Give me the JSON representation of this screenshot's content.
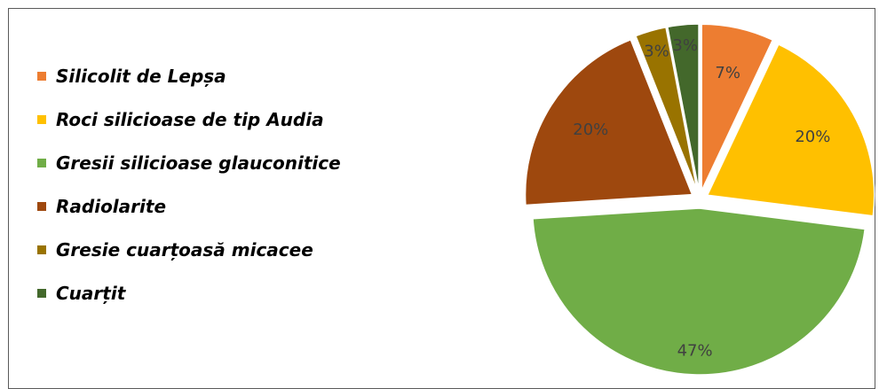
{
  "chart_data": {
    "type": "pie",
    "title": "",
    "exploded": true,
    "categories": [
      "Silicolit de Lepșa",
      "Roci silicioase de tip Audia",
      "Gresii silicioase glauconitice",
      "Radiolarite",
      "Gresie cuarțoasă micacee",
      "Cuarțit"
    ],
    "values": [
      7,
      20,
      47,
      20,
      3,
      3
    ],
    "labels": [
      "7%",
      "20%",
      "47%",
      "20%",
      "3%",
      "3%"
    ],
    "colors": [
      "#ED7D31",
      "#FFC000",
      "#70AD47",
      "#9E480E",
      "#997300",
      "#43682B"
    ],
    "legend_position": "left"
  }
}
